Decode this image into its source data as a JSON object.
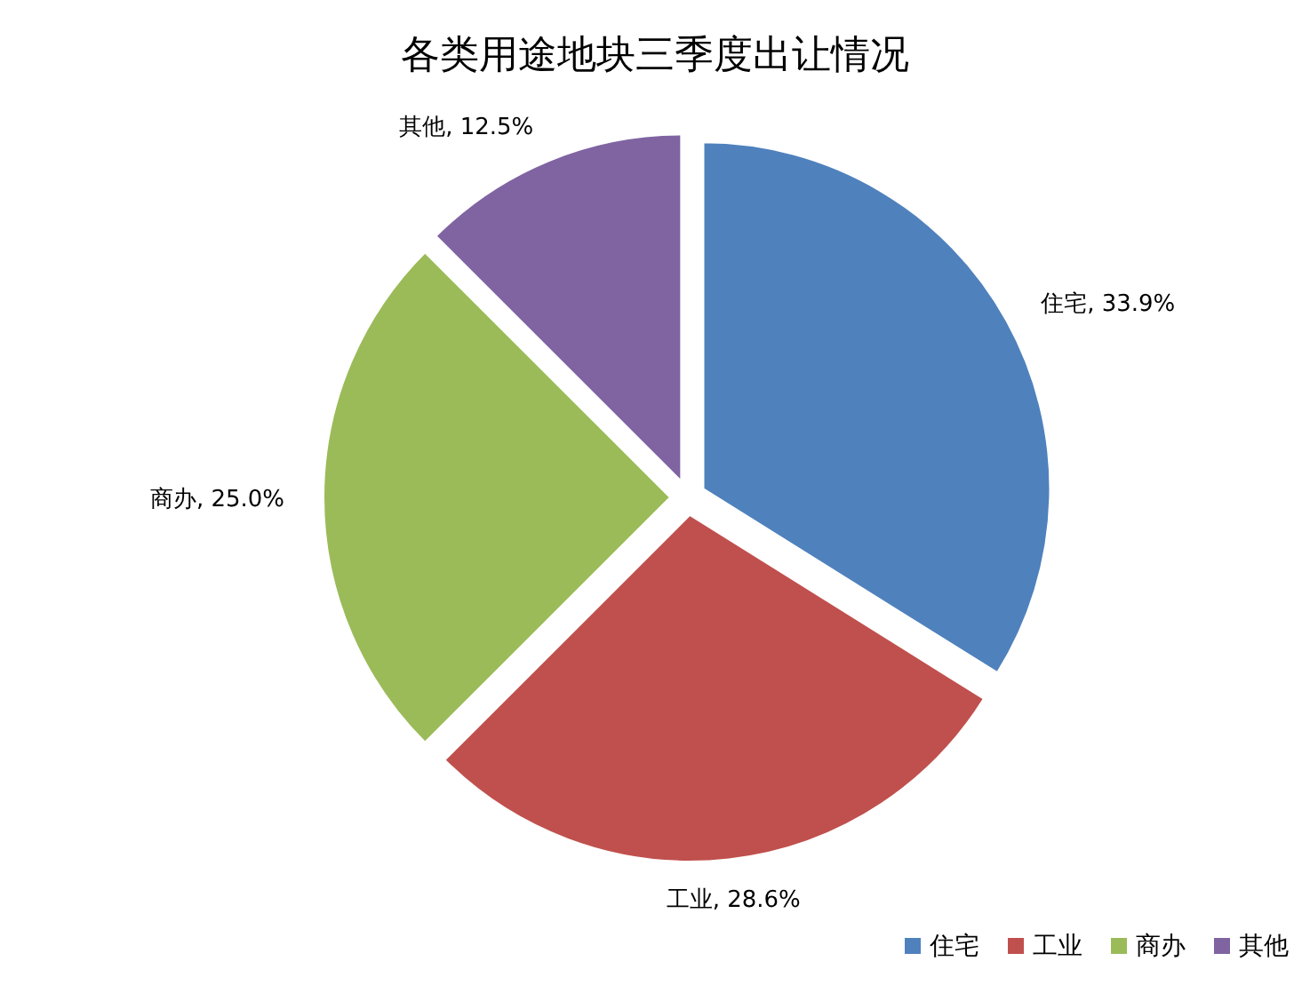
{
  "chart_data": {
    "type": "pie",
    "title": "各类用途地块三季度出让情况",
    "categories": [
      "住宅",
      "工业",
      "商办",
      "其他"
    ],
    "values": [
      33.9,
      28.6,
      25.0,
      12.5
    ],
    "colors": [
      "#4f81bd",
      "#c0504d",
      "#9bbb59",
      "#8064a2"
    ],
    "value_labels": [
      "住宅, 33.9%",
      "工业, 28.6%",
      "商办, 25.0%",
      "其他, 12.5%"
    ],
    "legend": "bottom right"
  }
}
